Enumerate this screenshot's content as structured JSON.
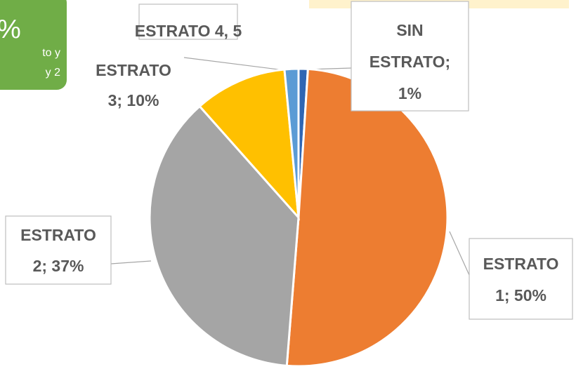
{
  "chart_data": {
    "type": "pie",
    "values": [
      1,
      50,
      37,
      10,
      1.5
    ],
    "value_labels": [
      [
        "SIN",
        "ESTRATO;",
        "1%"
      ],
      [
        "ESTRATO",
        "1; 50%"
      ],
      [
        "ESTRATO",
        "2; 37%"
      ],
      [
        "ESTRATO",
        "3; 10%"
      ],
      [
        "ESTRATO 4, 5"
      ]
    ],
    "colors": [
      "#2f66b3",
      "#ed7d31",
      "#a5a5a5",
      "#ffc000",
      "#5b9bd5"
    ],
    "annotations": [
      "%",
      "to y",
      "y 2"
    ]
  }
}
